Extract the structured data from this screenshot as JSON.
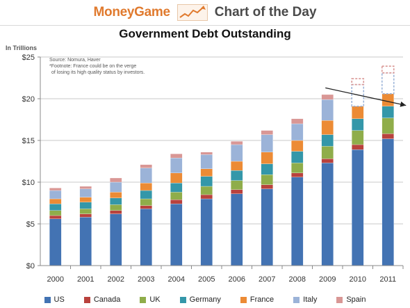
{
  "header": {
    "brand": "MoneyGame",
    "tagline": "Chart of the Day"
  },
  "notes": {
    "source": "Source: Nomura, Haver",
    "footnote_1": "*Footnote: France could be on the verge",
    "footnote_2": "of losing its high quality status by investors."
  },
  "colors": {
    "US": "#4373b3",
    "Canada": "#b9423d",
    "UK": "#8fad4a",
    "Germany": "#3497a9",
    "France": "#ec8b35",
    "Italy": "#9bb3d8",
    "Spain": "#d99795"
  },
  "chart_data": {
    "type": "bar",
    "stacked": true,
    "title": "Government Debt Outstanding",
    "ylabel": "In Trillions",
    "xlabel": "",
    "ylim": [
      0,
      25
    ],
    "yticks": [
      0,
      5,
      10,
      15,
      20,
      25
    ],
    "ytick_labels": [
      "$0",
      "$5",
      "$10",
      "$15",
      "$20",
      "$25"
    ],
    "grid": "horizontal",
    "legend_position": "bottom",
    "categories": [
      "2000",
      "2001",
      "2002",
      "2003",
      "2004",
      "2005",
      "2006",
      "2007",
      "2008",
      "2009",
      "2010",
      "2011"
    ],
    "series": [
      {
        "name": "US",
        "values": [
          5.6,
          5.8,
          6.2,
          6.8,
          7.4,
          8.0,
          8.6,
          9.2,
          10.6,
          12.3,
          13.9,
          15.2
        ]
      },
      {
        "name": "Canada",
        "values": [
          0.4,
          0.4,
          0.4,
          0.4,
          0.5,
          0.5,
          0.5,
          0.5,
          0.5,
          0.5,
          0.6,
          0.6
        ]
      },
      {
        "name": "UK",
        "values": [
          0.6,
          0.6,
          0.7,
          0.8,
          0.9,
          1.0,
          1.1,
          1.2,
          1.2,
          1.5,
          1.7,
          1.9
        ]
      },
      {
        "name": "Germany",
        "values": [
          0.8,
          0.8,
          0.8,
          1.0,
          1.1,
          1.2,
          1.2,
          1.3,
          1.4,
          1.4,
          1.4,
          1.4
        ]
      },
      {
        "name": "France",
        "values": [
          0.6,
          0.6,
          0.7,
          0.9,
          1.2,
          0.9,
          1.1,
          1.4,
          1.3,
          1.7,
          1.5,
          1.5
        ]
      },
      {
        "name": "Italy",
        "values": [
          1.0,
          1.0,
          1.2,
          1.8,
          1.8,
          1.7,
          2.0,
          2.1,
          2.0,
          2.5,
          2.6,
          2.5
        ]
      },
      {
        "name": "Spain",
        "values": [
          0.3,
          0.3,
          0.5,
          0.4,
          0.5,
          0.3,
          0.4,
          0.5,
          0.6,
          0.6,
          0.7,
          0.8
        ]
      }
    ],
    "projected_years": [
      "2010",
      "2011"
    ],
    "trend_arrow": {
      "from": [
        "2009",
        21.3
      ],
      "to": [
        "2011",
        19.2
      ]
    }
  }
}
